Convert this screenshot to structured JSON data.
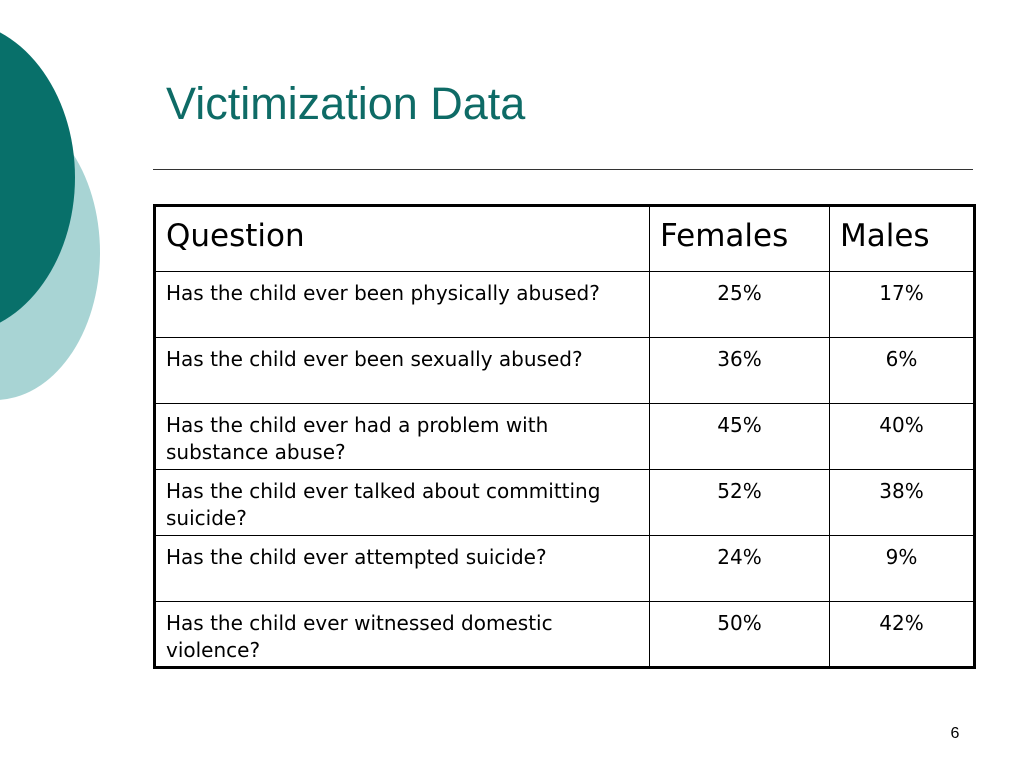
{
  "slide": {
    "title": "Victimization Data",
    "page_number": "6",
    "colors": {
      "title": "#0e6b66",
      "circle_dark": "#08706a",
      "circle_light": "#a8d4d4"
    }
  },
  "table": {
    "headers": [
      "Question",
      "Females",
      "Males"
    ],
    "rows": [
      {
        "question": "Has the child ever been physically abused?",
        "females": "25%",
        "males": "17%"
      },
      {
        "question": "Has the child ever been sexually abused?",
        "females": "36%",
        "males": "6%"
      },
      {
        "question": "Has the child ever had a problem with substance abuse?",
        "females": "45%",
        "males": "40%"
      },
      {
        "question": "Has the child ever talked about committing suicide?",
        "females": "52%",
        "males": "38%"
      },
      {
        "question": "Has the child ever attempted suicide?",
        "females": "24%",
        "males": "9%"
      },
      {
        "question": "Has the child ever witnessed domestic violence?",
        "females": "50%",
        "males": "42%"
      }
    ]
  }
}
